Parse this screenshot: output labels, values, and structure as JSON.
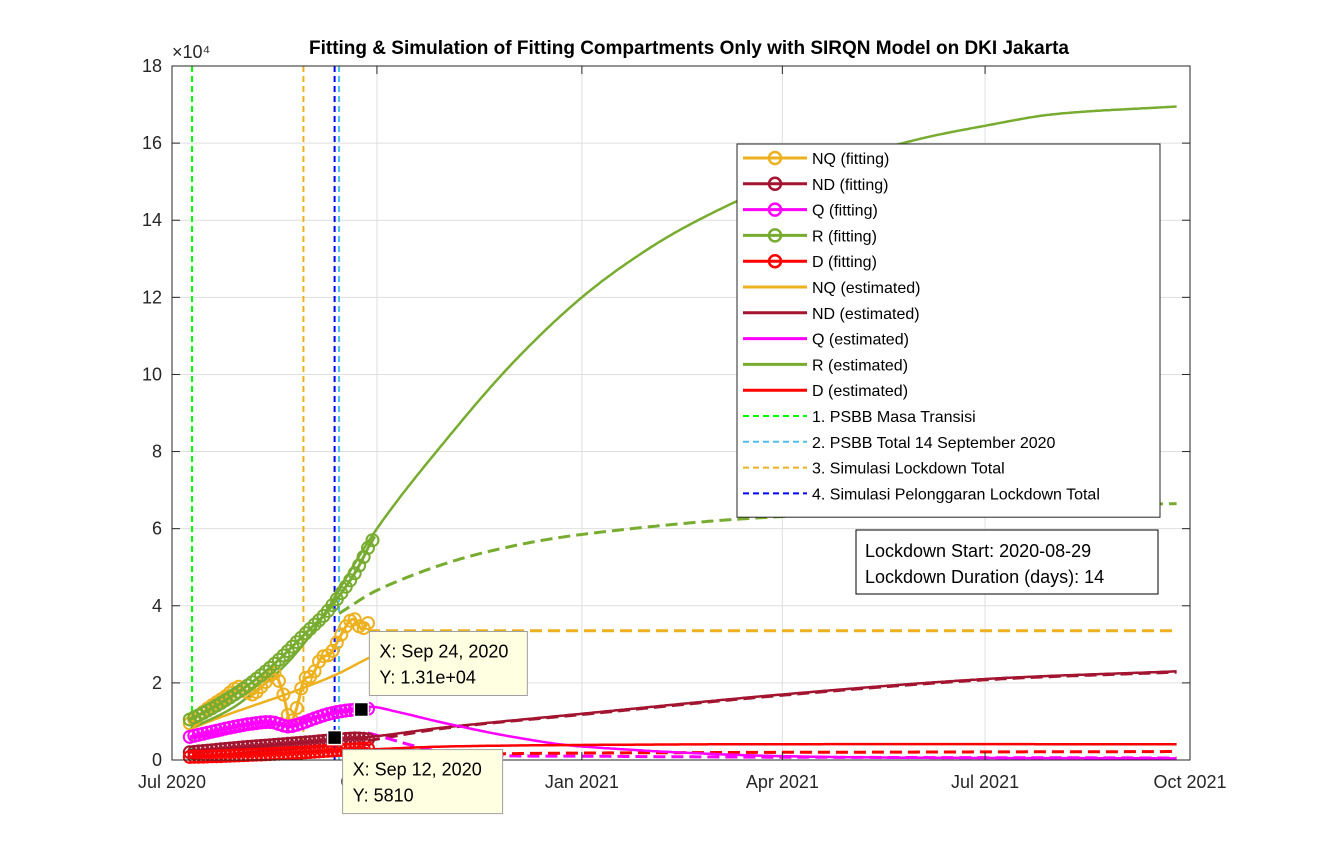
{
  "chart_data": {
    "type": "line",
    "title": "Fitting & Simulation of Fitting Compartments Only with SIRQN Model on DKI Jakarta",
    "y_exponent": "×10⁴",
    "xlabel": "",
    "ylabel": "",
    "xlim": [
      "2020-07-01",
      "2021-10-01"
    ],
    "ylim": [
      0,
      180000
    ],
    "x_ticks": [
      {
        "date": "2020-07-01",
        "label": "Jul 2020"
      },
      {
        "date": "2020-10-01",
        "label": "Oct 2020"
      },
      {
        "date": "2021-01-01",
        "label": "Jan 2021"
      },
      {
        "date": "2021-04-01",
        "label": "Apr 2021"
      },
      {
        "date": "2021-07-01",
        "label": "Jul 2021"
      },
      {
        "date": "2021-10-01",
        "label": "Oct 2021"
      }
    ],
    "y_ticks": [
      {
        "value": 0,
        "label": "0"
      },
      {
        "value": 20000,
        "label": "2"
      },
      {
        "value": 40000,
        "label": "4"
      },
      {
        "value": 60000,
        "label": "6"
      },
      {
        "value": 80000,
        "label": "8"
      },
      {
        "value": 100000,
        "label": "10"
      },
      {
        "value": 120000,
        "label": "12"
      },
      {
        "value": 140000,
        "label": "14"
      },
      {
        "value": 160000,
        "label": "16"
      },
      {
        "value": 180000,
        "label": "18"
      }
    ],
    "grid": true,
    "legend_position": "upper-right",
    "series": [
      {
        "name": "NQ (fitting)",
        "kind": "fitting",
        "color": "#EDB120",
        "points": [
          [
            "2020-07-09",
            9500
          ],
          [
            "2020-07-14",
            12000
          ],
          [
            "2020-07-19",
            14200
          ],
          [
            "2020-07-25",
            16500
          ],
          [
            "2020-07-31",
            19000
          ],
          [
            "2020-08-06",
            17000
          ],
          [
            "2020-08-11",
            19500
          ],
          [
            "2020-08-16",
            22500
          ],
          [
            "2020-08-20",
            17000
          ],
          [
            "2020-08-23",
            10000
          ],
          [
            "2020-08-26",
            13500
          ],
          [
            "2020-08-29",
            20500
          ],
          [
            "2020-09-02",
            22000
          ],
          [
            "2020-09-06",
            26500
          ],
          [
            "2020-09-10",
            27500
          ],
          [
            "2020-09-14",
            31500
          ],
          [
            "2020-09-18",
            35500
          ],
          [
            "2020-09-21",
            36500
          ],
          [
            "2020-09-24",
            34000
          ],
          [
            "2020-09-27",
            35500
          ]
        ]
      },
      {
        "name": "ND (fitting)",
        "kind": "fitting",
        "color": "#A2142F",
        "points": [
          [
            "2020-07-09",
            2000
          ],
          [
            "2020-07-20",
            2600
          ],
          [
            "2020-07-31",
            3200
          ],
          [
            "2020-08-11",
            3700
          ],
          [
            "2020-08-22",
            4200
          ],
          [
            "2020-09-02",
            4700
          ],
          [
            "2020-09-12",
            5200
          ],
          [
            "2020-09-21",
            5600
          ],
          [
            "2020-09-27",
            5400
          ]
        ]
      },
      {
        "name": "Q (fitting)",
        "kind": "fitting",
        "color": "#FF00FF",
        "points": [
          [
            "2020-07-09",
            6000
          ],
          [
            "2020-07-18",
            7200
          ],
          [
            "2020-07-28",
            8500
          ],
          [
            "2020-08-07",
            9500
          ],
          [
            "2020-08-15",
            9800
          ],
          [
            "2020-08-22",
            8700
          ],
          [
            "2020-08-28",
            9500
          ],
          [
            "2020-09-04",
            11000
          ],
          [
            "2020-09-11",
            12200
          ],
          [
            "2020-09-17",
            12800
          ],
          [
            "2020-09-22",
            13100
          ],
          [
            "2020-09-27",
            13300
          ]
        ]
      },
      {
        "name": "R (fitting)",
        "kind": "fitting",
        "color": "#77AC30",
        "points": [
          [
            "2020-07-09",
            10500
          ],
          [
            "2020-07-17",
            12800
          ],
          [
            "2020-07-25",
            15500
          ],
          [
            "2020-08-02",
            18500
          ],
          [
            "2020-08-10",
            22000
          ],
          [
            "2020-08-18",
            26000
          ],
          [
            "2020-08-25",
            30000
          ],
          [
            "2020-09-01",
            34000
          ],
          [
            "2020-09-08",
            38000
          ],
          [
            "2020-09-14",
            42500
          ],
          [
            "2020-09-20",
            47500
          ],
          [
            "2020-09-24",
            51500
          ],
          [
            "2020-09-27",
            55000
          ],
          [
            "2020-09-30",
            58000
          ]
        ]
      },
      {
        "name": "D (fitting)",
        "kind": "fitting",
        "color": "#FF0000",
        "points": [
          [
            "2020-07-09",
            800
          ],
          [
            "2020-07-22",
            1000
          ],
          [
            "2020-08-04",
            1300
          ],
          [
            "2020-08-17",
            1600
          ],
          [
            "2020-08-30",
            2000
          ],
          [
            "2020-09-12",
            2500
          ],
          [
            "2020-09-27",
            3000
          ]
        ]
      },
      {
        "name": "NQ (estimated)",
        "kind": "estimated",
        "color": "#EDB120",
        "points": [
          [
            "2020-07-09",
            8000
          ],
          [
            "2020-07-20",
            10500
          ],
          [
            "2020-07-31",
            12800
          ],
          [
            "2020-08-11",
            15000
          ],
          [
            "2020-08-22",
            17200
          ],
          [
            "2020-09-02",
            19600
          ],
          [
            "2020-09-14",
            22500
          ],
          [
            "2020-09-24",
            25500
          ],
          [
            "2020-10-01",
            27500
          ]
        ]
      },
      {
        "name": "ND (estimated)",
        "kind": "estimated",
        "color": "#A2142F",
        "points": [
          [
            "2020-07-09",
            2500
          ],
          [
            "2020-08-01",
            3200
          ],
          [
            "2020-08-29",
            4500
          ],
          [
            "2020-10-01",
            6200
          ],
          [
            "2020-11-01",
            8500
          ],
          [
            "2021-01-01",
            12000
          ],
          [
            "2021-04-01",
            17000
          ],
          [
            "2021-07-01",
            21000
          ],
          [
            "2021-09-25",
            23000
          ]
        ]
      },
      {
        "name": "Q (estimated)",
        "kind": "estimated",
        "color": "#FF00FF",
        "points": [
          [
            "2020-07-09",
            5500
          ],
          [
            "2020-08-01",
            7800
          ],
          [
            "2020-08-22",
            9800
          ],
          [
            "2020-09-14",
            12500
          ],
          [
            "2020-09-28",
            13800
          ],
          [
            "2020-10-10",
            12500
          ],
          [
            "2020-11-01",
            9500
          ],
          [
            "2020-12-01",
            6000
          ],
          [
            "2021-01-01",
            3500
          ],
          [
            "2021-04-01",
            1000
          ],
          [
            "2021-09-25",
            400
          ]
        ]
      },
      {
        "name": "R (estimated)",
        "kind": "estimated",
        "color": "#77AC30",
        "points": [
          [
            "2020-07-09",
            8000
          ],
          [
            "2020-08-01",
            15000
          ],
          [
            "2020-08-29",
            30000
          ],
          [
            "2020-10-01",
            60000
          ],
          [
            "2020-11-01",
            83000
          ],
          [
            "2020-12-01",
            103000
          ],
          [
            "2021-01-01",
            120000
          ],
          [
            "2021-02-01",
            133000
          ],
          [
            "2021-03-01",
            142000
          ],
          [
            "2021-04-01",
            150000
          ],
          [
            "2021-05-01",
            156000
          ],
          [
            "2021-06-01",
            161000
          ],
          [
            "2021-07-01",
            164500
          ],
          [
            "2021-08-01",
            167500
          ],
          [
            "2021-09-25",
            169500
          ]
        ]
      },
      {
        "name": "D (estimated)",
        "kind": "estimated",
        "color": "#FF0000",
        "points": [
          [
            "2020-07-09",
            700
          ],
          [
            "2020-08-29",
            2000
          ],
          [
            "2020-10-01",
            2800
          ],
          [
            "2020-11-01",
            3500
          ],
          [
            "2021-01-01",
            3900
          ],
          [
            "2021-04-01",
            4100
          ],
          [
            "2021-09-25",
            4100
          ]
        ]
      },
      {
        "name": "",
        "kind": "simulation",
        "color": "#EDB120",
        "points": [
          [
            "2020-09-27",
            33500
          ],
          [
            "2020-10-15",
            33500
          ],
          [
            "2021-01-01",
            33500
          ],
          [
            "2021-04-01",
            33500
          ],
          [
            "2021-09-25",
            33500
          ]
        ]
      },
      {
        "name": "",
        "kind": "simulation",
        "color": "#A2142F",
        "points": [
          [
            "2020-09-27",
            5000
          ],
          [
            "2020-11-01",
            8300
          ],
          [
            "2021-01-01",
            11800
          ],
          [
            "2021-04-01",
            16800
          ],
          [
            "2021-07-01",
            20800
          ],
          [
            "2021-09-25",
            22800
          ]
        ]
      },
      {
        "name": "",
        "kind": "simulation",
        "color": "#FF00FF",
        "points": [
          [
            "2020-09-27",
            7000
          ],
          [
            "2020-11-01",
            2000
          ],
          [
            "2021-01-01",
            1000
          ],
          [
            "2021-09-25",
            500
          ]
        ]
      },
      {
        "name": "",
        "kind": "simulation",
        "color": "#77AC30",
        "points": [
          [
            "2020-09-14",
            38000
          ],
          [
            "2020-10-01",
            44000
          ],
          [
            "2020-11-01",
            51000
          ],
          [
            "2020-12-01",
            55500
          ],
          [
            "2021-01-01",
            58500
          ],
          [
            "2021-03-01",
            62000
          ],
          [
            "2021-05-01",
            64000
          ],
          [
            "2021-07-01",
            65500
          ],
          [
            "2021-09-25",
            66500
          ]
        ]
      },
      {
        "name": "",
        "kind": "simulation",
        "color": "#FF0000",
        "points": [
          [
            "2020-09-27",
            1200
          ],
          [
            "2021-01-01",
            1800
          ],
          [
            "2021-09-25",
            2200
          ]
        ]
      }
    ],
    "vertical_lines": [
      {
        "name": "1. PSBB Masa Transisi",
        "date": "2020-07-10",
        "color": "#00FF00"
      },
      {
        "name": "2. PSBB Total 14 September 2020",
        "date": "2020-09-14",
        "color": "#4DBEEE"
      },
      {
        "name": "3. Simulasi Lockdown Total",
        "date": "2020-08-29",
        "color": "#EDB120"
      },
      {
        "name": "4. Simulasi Pelonggaran Lockdown Total",
        "date": "2020-09-12",
        "color": "#0000FF"
      }
    ],
    "annotation": {
      "lines": [
        "Lockdown Start: 2020-08-29",
        "Lockdown Duration (days): 14"
      ]
    },
    "datatips": [
      {
        "x_text": "X: Sep 24, 2020",
        "y_text": "Y: 1.31e+04",
        "date": "2020-09-24",
        "value": 13100
      },
      {
        "x_text": "X: Sep 12, 2020",
        "y_text": "Y: 5810",
        "date": "2020-09-12",
        "value": 5810
      }
    ]
  }
}
